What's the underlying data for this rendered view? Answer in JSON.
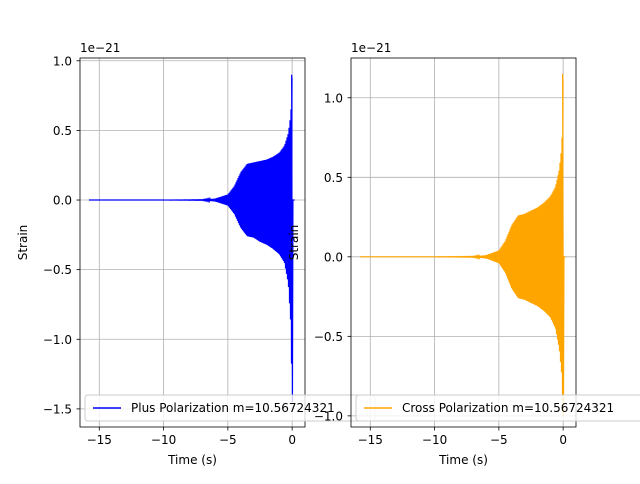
{
  "chart_data": [
    {
      "type": "line",
      "xlabel": "Time (s)",
      "ylabel": "Strain",
      "offset_text": "1e−21",
      "xlim": [
        -16.5,
        1.0
      ],
      "ylim": [
        -1.63,
        1.02
      ],
      "xticks": [
        -15,
        -10,
        -5,
        0
      ],
      "xtick_labels": [
        "−15",
        "−10",
        "−5",
        "0"
      ],
      "yticks": [
        -1.5,
        -1.0,
        -0.5,
        0.0,
        0.5,
        1.0
      ],
      "ytick_labels": [
        "−1.5",
        "−1.0",
        "−0.5",
        "0.0",
        "0.5",
        "1.0"
      ],
      "grid": true,
      "legend_location": "bottom-left",
      "series": [
        {
          "name": "Plus Polarization m=10.56724321",
          "color": "#0000ff",
          "envelope": {
            "t": [
              -15.8,
              -10,
              -7,
              -6,
              -5,
              -4.5,
              -4,
              -3.5,
              -3,
              -2.5,
              -2,
              -1.5,
              -1,
              -0.6,
              -0.3,
              -0.1,
              0.0
            ],
            "upper": [
              0.0,
              0.0,
              0.002,
              0.01,
              0.04,
              0.1,
              0.2,
              0.26,
              0.27,
              0.28,
              0.29,
              0.31,
              0.34,
              0.39,
              0.48,
              0.62,
              0.9
            ],
            "lower": [
              0.0,
              0.0,
              -0.002,
              -0.01,
              -0.04,
              -0.1,
              -0.2,
              -0.26,
              -0.27,
              -0.3,
              -0.32,
              -0.35,
              -0.39,
              -0.45,
              -0.6,
              -0.9,
              -1.45
            ]
          },
          "peak_time": 0.0
        }
      ]
    },
    {
      "type": "line",
      "xlabel": "Time (s)",
      "ylabel": "Strain",
      "offset_text": "1e−21",
      "xlim": [
        -16.5,
        1.0
      ],
      "ylim": [
        -1.07,
        1.25
      ],
      "xticks": [
        -15,
        -10,
        -5,
        0
      ],
      "xtick_labels": [
        "−15",
        "−10",
        "−5",
        "0"
      ],
      "yticks": [
        -1.0,
        -0.5,
        0.0,
        0.5,
        1.0
      ],
      "ytick_labels": [
        "−1.0",
        "−0.5",
        "0.0",
        "0.5",
        "1.0"
      ],
      "grid": true,
      "legend_location": "bottom-left",
      "series": [
        {
          "name": "Cross Polarization m=10.56724321",
          "color": "#ffa500",
          "envelope": {
            "t": [
              -15.8,
              -10,
              -7,
              -6,
              -5,
              -4.5,
              -4,
              -3.5,
              -3,
              -2.5,
              -2,
              -1.5,
              -1,
              -0.6,
              -0.3,
              -0.1,
              0.0
            ],
            "upper": [
              0.0,
              0.0,
              0.002,
              0.01,
              0.04,
              0.1,
              0.2,
              0.26,
              0.27,
              0.29,
              0.31,
              0.34,
              0.38,
              0.44,
              0.55,
              0.7,
              1.15
            ],
            "lower": [
              0.0,
              0.0,
              -0.002,
              -0.01,
              -0.04,
              -0.1,
              -0.2,
              -0.26,
              -0.27,
              -0.29,
              -0.31,
              -0.34,
              -0.38,
              -0.45,
              -0.58,
              -0.75,
              -1.0
            ]
          },
          "peak_time": 0.0
        }
      ]
    }
  ]
}
